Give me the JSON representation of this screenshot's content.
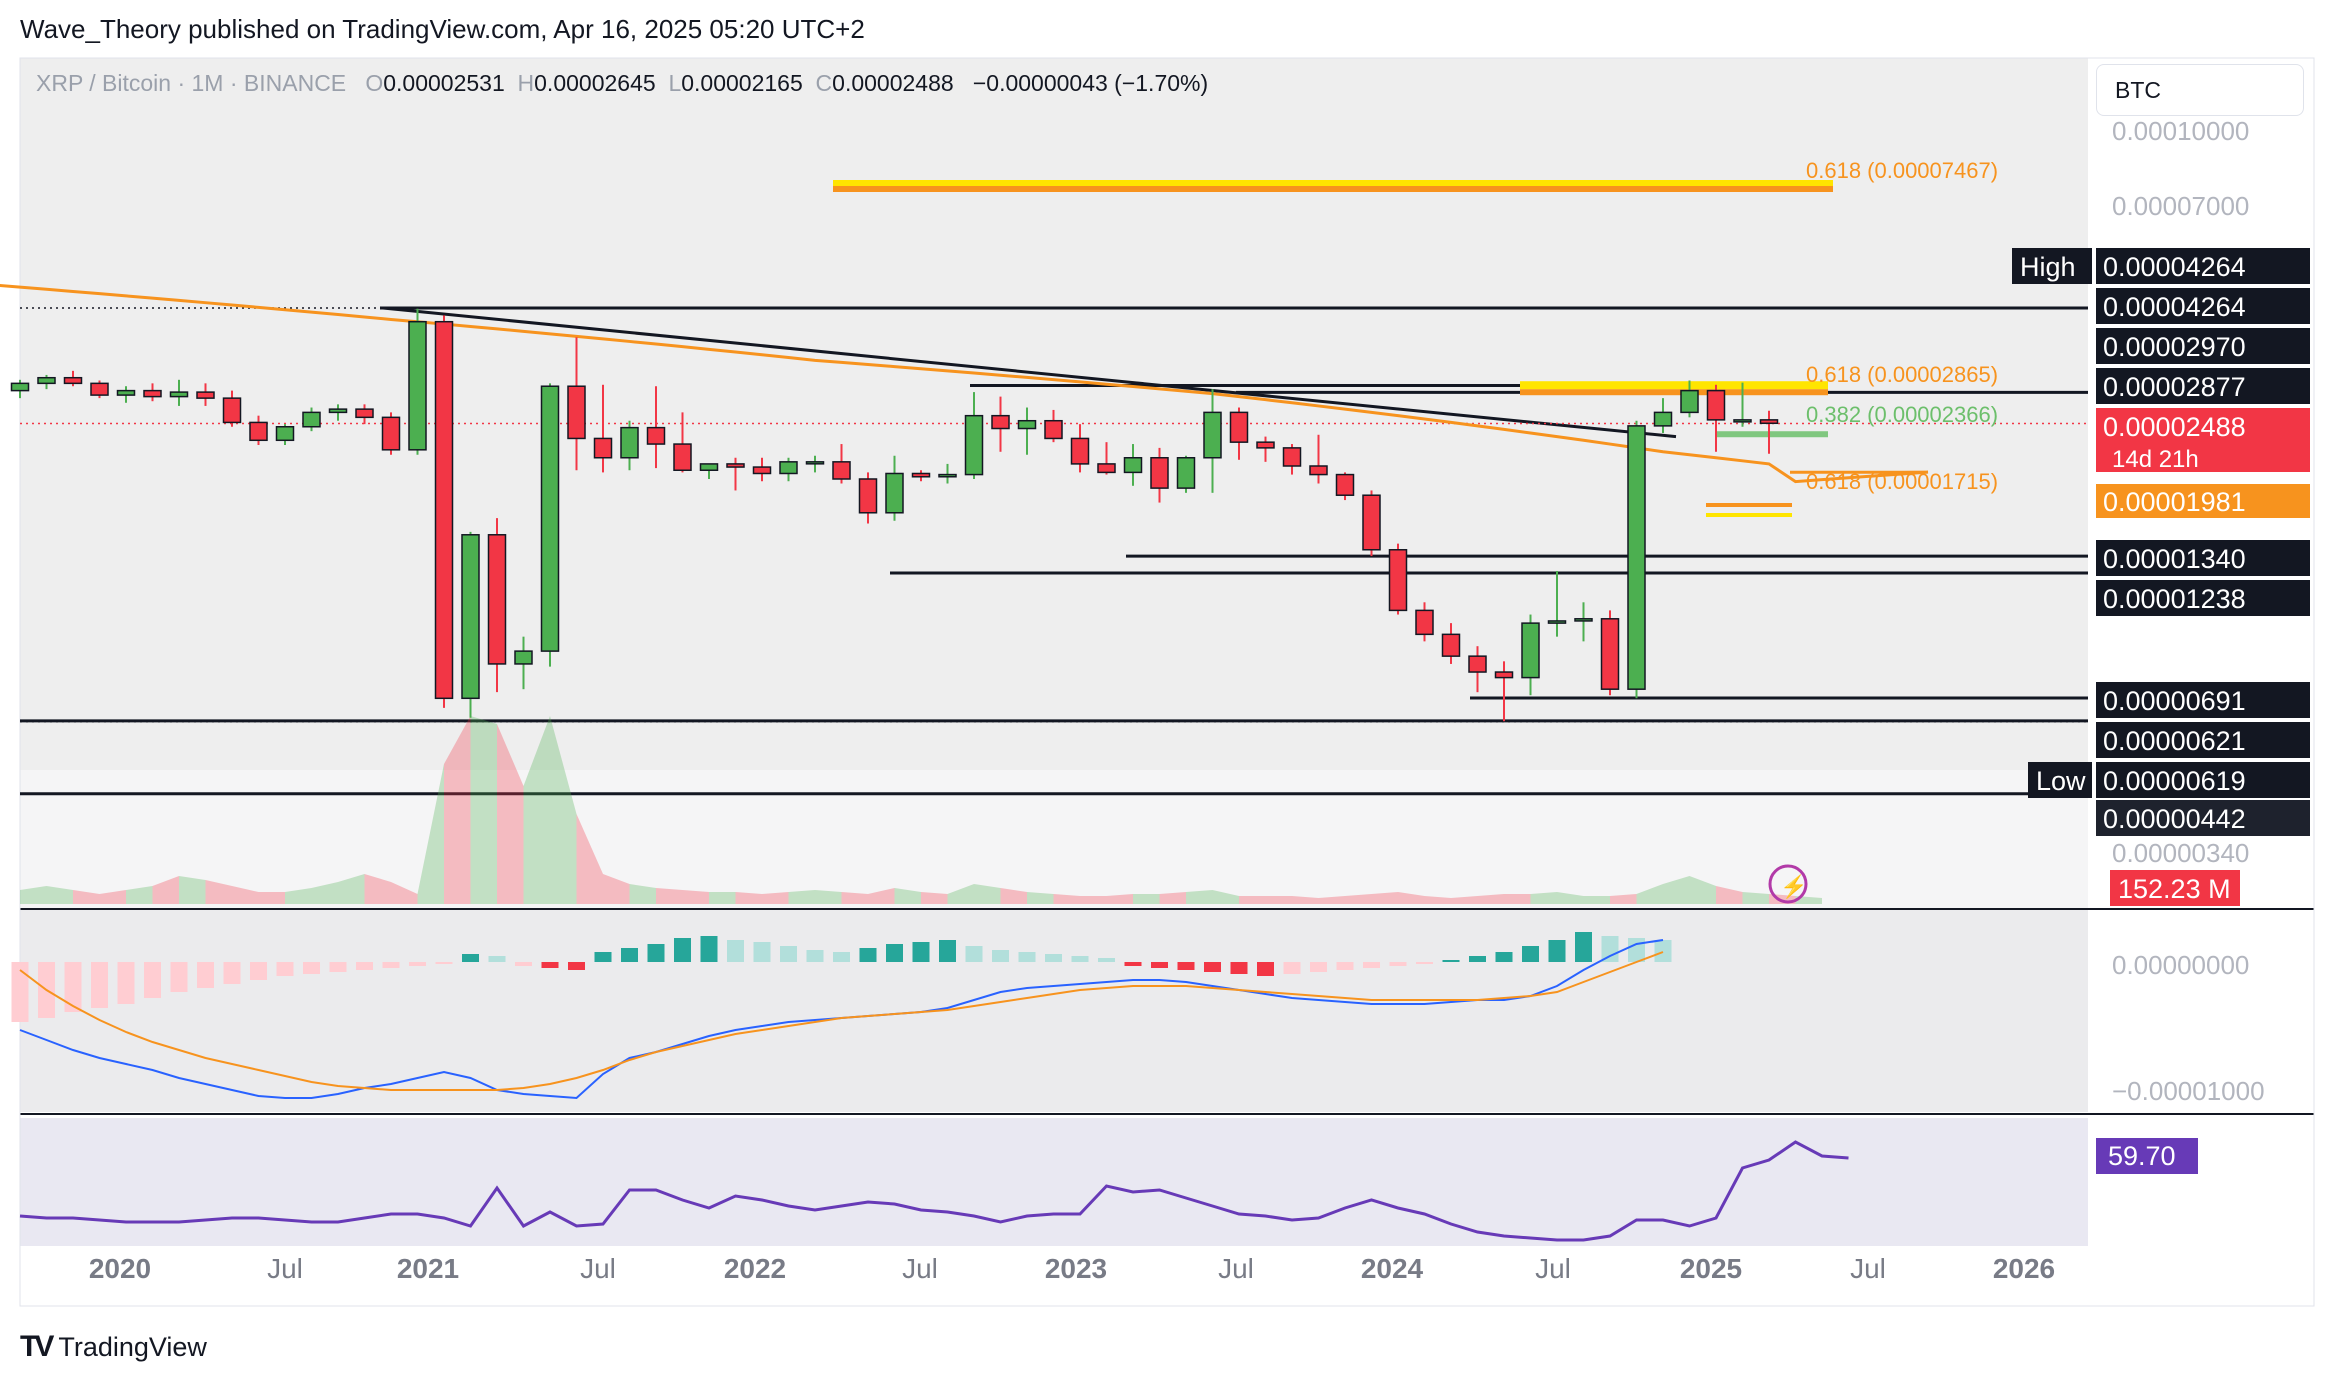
{
  "header": {
    "publisher_line": "Wave_Theory published on TradingView.com, Apr 16, 2025 05:20 UTC+2"
  },
  "legend": {
    "symbol": "XRP / Bitcoin · 1M · BINANCE",
    "o_label": "O",
    "open": "0.00002531",
    "h_label": "H",
    "high": "0.00002645",
    "l_label": "L",
    "low": "0.00002165",
    "c_label": "C",
    "close": "0.00002488",
    "change": "−0.00000043 (−1.70%)"
  },
  "currency_button": "BTC",
  "footer": {
    "brand": "TradingView"
  },
  "colors": {
    "up": "#4caf50",
    "down": "#f23645",
    "ema": "#f7931e",
    "macd": "#2962ff",
    "signal": "#f7931e",
    "rsi": "#673ab7",
    "fib_yellow": "#ffe500",
    "fib_orange": "#f7931e",
    "fib_green": "#6cbf6b",
    "price_tag_red": "#f23645",
    "price_tag_orange": "#f7931e",
    "rsi_tag": "#673ab7"
  },
  "chart_data": [
    {
      "type": "candlestick",
      "title": "XRP / Bitcoin · 1M · BINANCE",
      "x_labels": [
        "2020",
        "Jul",
        "2021",
        "Jul",
        "2022",
        "Jul",
        "2023",
        "Jul",
        "2024",
        "Jul",
        "2025",
        "Jul",
        "2026"
      ],
      "y_scale": "log",
      "y_ticks": [
        "0.00010000",
        "0.00007000",
        "0.00000340"
      ],
      "candles_monthly_from": "2019-11",
      "candles": [
        [
          2.9e-05,
          3.05e-05,
          2.8e-05,
          3e-05
        ],
        [
          3e-05,
          3.12e-05,
          2.92e-05,
          3.08e-05
        ],
        [
          3.08e-05,
          3.18e-05,
          2.96e-05,
          3e-05
        ],
        [
          3e-05,
          3.04e-05,
          2.8e-05,
          2.84e-05
        ],
        [
          2.84e-05,
          2.96e-05,
          2.74e-05,
          2.9e-05
        ],
        [
          2.9e-05,
          3e-05,
          2.76e-05,
          2.82e-05
        ],
        [
          2.82e-05,
          3.05e-05,
          2.7e-05,
          2.88e-05
        ],
        [
          2.88e-05,
          3e-05,
          2.7e-05,
          2.8e-05
        ],
        [
          2.8e-05,
          2.9e-05,
          2.45e-05,
          2.5e-05
        ],
        [
          2.5e-05,
          2.58e-05,
          2.25e-05,
          2.3e-05
        ],
        [
          2.3e-05,
          2.48e-05,
          2.25e-05,
          2.45e-05
        ],
        [
          2.45e-05,
          2.68e-05,
          2.4e-05,
          2.62e-05
        ],
        [
          2.62e-05,
          2.72e-05,
          2.52e-05,
          2.66e-05
        ],
        [
          2.66e-05,
          2.72e-05,
          2.48e-05,
          2.56e-05
        ],
        [
          2.56e-05,
          2.62e-05,
          2.15e-05,
          2.2e-05
        ],
        [
          2.2e-05,
          4.25e-05,
          2.15e-05,
          4e-05
        ],
        [
          4e-05,
          4.12e-05,
          6.6e-06,
          6.9e-06
        ],
        [
          6.9e-06,
          1.5e-05,
          6.3e-06,
          1.48e-05
        ],
        [
          1.48e-05,
          1.6e-05,
          7.1e-06,
          8.1e-06
        ],
        [
          8.1e-06,
          9.2e-06,
          7.2e-06,
          8.6e-06
        ],
        [
          8.6e-06,
          3e-05,
          8e-06,
          2.96e-05
        ],
        [
          2.96e-05,
          3.72e-05,
          2e-05,
          2.32e-05
        ],
        [
          2.32e-05,
          2.98e-05,
          1.98e-05,
          2.12e-05
        ],
        [
          2.12e-05,
          2.52e-05,
          2e-05,
          2.44e-05
        ],
        [
          2.44e-05,
          2.96e-05,
          2.02e-05,
          2.26e-05
        ],
        [
          2.26e-05,
          2.62e-05,
          1.98e-05,
          2e-05
        ],
        [
          2e-05,
          2.06e-05,
          1.92e-05,
          2.06e-05
        ],
        [
          2.06e-05,
          2.12e-05,
          1.82e-05,
          2.03e-05
        ],
        [
          2.03e-05,
          2.12e-05,
          1.9e-05,
          1.97e-05
        ],
        [
          1.97e-05,
          2.12e-05,
          1.9e-05,
          2.08e-05
        ],
        [
          2.08e-05,
          2.14e-05,
          1.98e-05,
          2.08e-05
        ],
        [
          2.08e-05,
          2.26e-05,
          1.88e-05,
          1.92e-05
        ],
        [
          1.92e-05,
          1.98e-05,
          1.56e-05,
          1.64e-05
        ],
        [
          1.64e-05,
          2.14e-05,
          1.58e-05,
          1.97e-05
        ],
        [
          1.97e-05,
          2e-05,
          1.9e-05,
          1.94e-05
        ],
        [
          1.94e-05,
          2.06e-05,
          1.88e-05,
          1.96e-05
        ],
        [
          1.96e-05,
          2.88e-05,
          1.92e-05,
          2.58e-05
        ],
        [
          2.58e-05,
          2.82e-05,
          2.18e-05,
          2.43e-05
        ],
        [
          2.43e-05,
          2.68e-05,
          2.15e-05,
          2.52e-05
        ],
        [
          2.52e-05,
          2.65e-05,
          2.28e-05,
          2.32e-05
        ],
        [
          2.32e-05,
          2.48e-05,
          1.98e-05,
          2.06e-05
        ],
        [
          2.06e-05,
          2.28e-05,
          1.96e-05,
          1.98e-05
        ],
        [
          1.98e-05,
          2.26e-05,
          1.86e-05,
          2.12e-05
        ],
        [
          2.12e-05,
          2.22e-05,
          1.72e-05,
          1.84e-05
        ],
        [
          1.84e-05,
          2.14e-05,
          1.8e-05,
          2.12e-05
        ],
        [
          2.12e-05,
          2.92e-05,
          1.8e-05,
          2.62e-05
        ],
        [
          2.62e-05,
          2.68e-05,
          2.1e-05,
          2.28e-05
        ],
        [
          2.28e-05,
          2.34e-05,
          2.08e-05,
          2.22e-05
        ],
        [
          2.22e-05,
          2.26e-05,
          1.96e-05,
          2.04e-05
        ],
        [
          2.04e-05,
          2.36e-05,
          1.88e-05,
          1.96e-05
        ],
        [
          1.96e-05,
          1.98e-05,
          1.74e-05,
          1.78e-05
        ],
        [
          1.78e-05,
          1.82e-05,
          1.34e-05,
          1.38e-05
        ],
        [
          1.38e-05,
          1.42e-05,
          1.02e-05,
          1.04e-05
        ],
        [
          1.04e-05,
          1.08e-05,
          9e-06,
          9.3e-06
        ],
        [
          9.3e-06,
          9.8e-06,
          8.1e-06,
          8.4e-06
        ],
        [
          8.4e-06,
          8.8e-06,
          7.1e-06,
          7.8e-06
        ],
        [
          7.8e-06,
          8.2e-06,
          6.2e-06,
          7.6e-06
        ],
        [
          7.6e-06,
          1.02e-05,
          7e-06,
          9.8e-06
        ],
        [
          9.8e-06,
          1.25e-05,
          9.2e-06,
          9.9e-06
        ],
        [
          9.9e-06,
          1.08e-05,
          9e-06,
          1e-05
        ],
        [
          1e-05,
          1.04e-05,
          7e-06,
          7.2e-06
        ],
        [
          7.2e-06,
          2.52e-05,
          6.9e-06,
          2.46e-05
        ],
        [
          2.46e-05,
          2.8e-05,
          2.38e-05,
          2.62e-05
        ],
        [
          2.62e-05,
          3.04e-05,
          2.56e-05,
          2.9e-05
        ],
        [
          2.9e-05,
          2.98e-05,
          2.18e-05,
          2.53e-05
        ],
        [
          2.53e-05,
          3.01e-05,
          2.45e-05,
          2.53e-05
        ],
        [
          2.53e-05,
          2.64e-05,
          2.16e-05,
          2.49e-05
        ]
      ],
      "ema_series": "orange moving average",
      "price_labels": [
        {
          "text": "High",
          "boxed_value": "0.00004264"
        },
        {
          "text": "",
          "boxed_value": "0.00004264"
        },
        {
          "text": "",
          "boxed_value": "0.00002970"
        },
        {
          "text": "",
          "boxed_value": "0.00002877"
        },
        {
          "text": "",
          "boxed_value": "0.00001340"
        },
        {
          "text": "",
          "boxed_value": "0.00001238"
        },
        {
          "text": "",
          "boxed_value": "0.00000691"
        },
        {
          "text": "",
          "boxed_value": "0.00000621"
        },
        {
          "text": "Low",
          "boxed_value": "0.00000619"
        },
        {
          "text": "",
          "boxed_value": "0.00000442"
        }
      ],
      "last_price": "0.00002488",
      "countdown": "14d 21h",
      "ema_price": "0.00001981",
      "volume_value": "152.23 M",
      "fib_labels": [
        {
          "text": "0.618 (0.00007467)",
          "price": 7.467e-05,
          "color": "#f7931e"
        },
        {
          "text": "0.618 (0.00002865)",
          "price": 2.865e-05,
          "color": "#f7931e"
        },
        {
          "text": "0.382 (0.00002366)",
          "price": 2.366e-05,
          "color": "#6cbf6b"
        },
        {
          "text": "0.618 (0.00001715)",
          "price": 1.715e-05,
          "color": "#f7931e"
        }
      ]
    },
    {
      "type": "macd",
      "y_ticks": [
        "0.00000000",
        "−0.00001000"
      ]
    },
    {
      "type": "line",
      "name": "RSI",
      "last_value": "59.70"
    }
  ]
}
